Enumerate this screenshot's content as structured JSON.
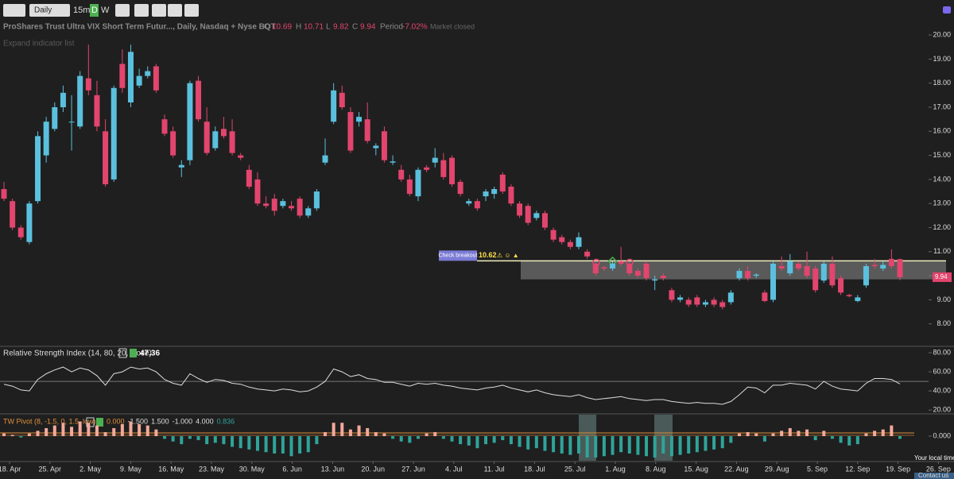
{
  "ui": {
    "interval": "Daily",
    "interval_options": [
      "15m",
      "D",
      "W"
    ],
    "expand": "Expand indicator list",
    "local_time": "Your local time",
    "contact": "Contact us",
    "market_status": "Market closed",
    "period_label": "Period",
    "period_value": "-7.02%",
    "ohlc_labels": [
      "O",
      "H",
      "L",
      "C"
    ]
  },
  "chart_data": {
    "type": "candlestick",
    "title": "ProShares Trust Ultra VIX Short Term Futur..., Daily, Nasdaq + Nyse BQT",
    "up_color": "#5bc0de",
    "down_color": "#e2456e",
    "ylim": [
      7.1,
      20.3
    ],
    "yticks": [
      {
        "value": 20,
        "label": "20.00"
      },
      {
        "value": 19,
        "label": "19.00"
      },
      {
        "value": 18,
        "label": "18.00"
      },
      {
        "value": 17,
        "label": "17.00"
      },
      {
        "value": 16,
        "label": "16.00"
      },
      {
        "value": 15,
        "label": "15.00"
      },
      {
        "value": 14,
        "label": "14.00"
      },
      {
        "value": 13,
        "label": "13.00"
      },
      {
        "value": 12,
        "label": "12.00"
      },
      {
        "value": 11,
        "label": "11.00"
      },
      {
        "value": 10,
        "label": "10.00"
      },
      {
        "value": 9,
        "label": "9.00"
      },
      {
        "value": 8,
        "label": "8.00"
      }
    ],
    "date_labels": [
      "18. Apr",
      "25. Apr",
      "2. May",
      "9. May",
      "16. May",
      "23. May",
      "30. May",
      "6. Jun",
      "13. Jun",
      "20. Jun",
      "27. Jun",
      "4. Jul",
      "11. Jul",
      "18. Jul",
      "25. Jul",
      "1. Aug",
      "8. Aug",
      "15. Aug",
      "22. Aug",
      "29. Aug",
      "5. Sep",
      "12. Sep",
      "19. Sep",
      "26. Sep"
    ],
    "breakout": {
      "label": "Check breakout",
      "level": 10.62,
      "zone_low": 9.85
    },
    "candles": [
      [
        13.6,
        13.9,
        13.1,
        13.2
      ],
      [
        13.1,
        13.2,
        11.9,
        12.0
      ],
      [
        12.0,
        12.1,
        11.5,
        11.6
      ],
      [
        11.4,
        13.1,
        11.3,
        13.0
      ],
      [
        13.1,
        16.0,
        13.0,
        15.8
      ],
      [
        15.0,
        16.6,
        14.7,
        16.4
      ],
      [
        16.1,
        17.2,
        16.0,
        17.0
      ],
      [
        17.0,
        17.9,
        16.8,
        17.6
      ],
      [
        16.4,
        17.5,
        15.2,
        16.4
      ],
      [
        16.2,
        18.5,
        16.1,
        18.3
      ],
      [
        18.2,
        19.6,
        17.5,
        17.7
      ],
      [
        17.5,
        18.1,
        16.0,
        16.2
      ],
      [
        16.0,
        16.5,
        13.7,
        13.8
      ],
      [
        14.0,
        17.9,
        13.9,
        17.8
      ],
      [
        18.8,
        19.4,
        17.6,
        17.8
      ],
      [
        17.2,
        19.6,
        17.0,
        19.3
      ],
      [
        17.9,
        18.6,
        17.8,
        18.3
      ],
      [
        18.3,
        18.7,
        18.2,
        18.5
      ],
      [
        18.7,
        18.8,
        17.6,
        17.7
      ],
      [
        16.5,
        16.7,
        15.8,
        15.9
      ],
      [
        16.0,
        16.2,
        14.9,
        15.0
      ],
      [
        14.5,
        14.8,
        14.1,
        14.6
      ],
      [
        14.8,
        18.1,
        14.6,
        18.0
      ],
      [
        18.1,
        18.3,
        16.4,
        16.5
      ],
      [
        16.4,
        17.0,
        15.0,
        15.1
      ],
      [
        15.3,
        16.2,
        15.2,
        16.0
      ],
      [
        16.1,
        16.6,
        15.7,
        15.8
      ],
      [
        16.0,
        16.5,
        15.0,
        15.1
      ],
      [
        15.0,
        15.1,
        14.8,
        14.9
      ],
      [
        14.4,
        14.6,
        13.6,
        13.7
      ],
      [
        14.0,
        14.3,
        12.9,
        13.0
      ],
      [
        13.0,
        13.3,
        12.8,
        12.9
      ],
      [
        13.2,
        13.4,
        12.5,
        12.7
      ],
      [
        12.9,
        13.2,
        12.8,
        13.1
      ],
      [
        12.9,
        13.1,
        12.7,
        12.8
      ],
      [
        13.2,
        13.3,
        12.4,
        12.5
      ],
      [
        12.5,
        12.9,
        12.4,
        12.8
      ],
      [
        12.8,
        13.6,
        12.7,
        13.5
      ],
      [
        14.7,
        15.7,
        14.6,
        15.0
      ],
      [
        16.4,
        18.0,
        16.3,
        17.7
      ],
      [
        17.6,
        17.9,
        16.9,
        17.0
      ],
      [
        16.8,
        17.0,
        15.1,
        15.2
      ],
      [
        16.4,
        16.8,
        16.2,
        16.6
      ],
      [
        16.5,
        17.2,
        15.5,
        15.6
      ],
      [
        15.3,
        15.5,
        15.0,
        15.4
      ],
      [
        16.0,
        16.2,
        14.7,
        14.8
      ],
      [
        14.7,
        15.0,
        14.6,
        14.75
      ],
      [
        14.4,
        14.6,
        13.9,
        14.0
      ],
      [
        14.0,
        14.2,
        13.3,
        13.4
      ],
      [
        13.3,
        14.5,
        13.1,
        14.4
      ],
      [
        14.5,
        14.6,
        14.3,
        14.4
      ],
      [
        14.7,
        15.3,
        14.5,
        14.9
      ],
      [
        14.8,
        15.1,
        14.0,
        14.1
      ],
      [
        14.9,
        15.0,
        13.7,
        13.8
      ],
      [
        13.9,
        14.0,
        13.3,
        13.4
      ],
      [
        13.0,
        13.2,
        12.9,
        13.1
      ],
      [
        13.1,
        13.2,
        12.7,
        12.8
      ],
      [
        13.3,
        13.6,
        13.1,
        13.5
      ],
      [
        13.4,
        13.7,
        13.2,
        13.6
      ],
      [
        14.2,
        14.3,
        13.4,
        13.5
      ],
      [
        13.7,
        13.8,
        12.9,
        13.0
      ],
      [
        13.0,
        13.1,
        12.4,
        12.5
      ],
      [
        12.9,
        13.0,
        12.1,
        12.2
      ],
      [
        12.4,
        12.7,
        12.3,
        12.6
      ],
      [
        12.6,
        12.7,
        11.9,
        12.0
      ],
      [
        11.9,
        12.0,
        11.4,
        11.5
      ],
      [
        11.6,
        11.7,
        11.3,
        11.4
      ],
      [
        11.4,
        11.5,
        11.1,
        11.2
      ],
      [
        11.2,
        11.8,
        11.1,
        11.6
      ],
      [
        11.0,
        11.1,
        10.7,
        10.8
      ],
      [
        10.5,
        10.6,
        10.0,
        10.1
      ],
      [
        10.35,
        10.4,
        10.2,
        10.3
      ],
      [
        10.3,
        10.6,
        10.2,
        10.5
      ],
      [
        10.6,
        11.2,
        10.4,
        10.5
      ],
      [
        10.5,
        10.6,
        10.0,
        10.1
      ],
      [
        10.2,
        10.3,
        9.9,
        10.0
      ],
      [
        10.5,
        10.6,
        9.8,
        9.9
      ],
      [
        9.8,
        10.0,
        9.4,
        9.85
      ],
      [
        10.0,
        10.1,
        9.8,
        9.9
      ],
      [
        9.4,
        9.5,
        8.9,
        9.0
      ],
      [
        9.0,
        9.2,
        8.9,
        9.1
      ],
      [
        9.0,
        9.1,
        8.7,
        8.8
      ],
      [
        9.1,
        9.2,
        8.7,
        8.8
      ],
      [
        8.8,
        9.0,
        8.7,
        8.9
      ],
      [
        9.0,
        9.1,
        8.7,
        8.8
      ],
      [
        8.9,
        9.0,
        8.6,
        8.7
      ],
      [
        8.9,
        9.4,
        8.8,
        9.3
      ],
      [
        9.9,
        10.3,
        9.8,
        10.2
      ],
      [
        10.2,
        10.4,
        9.8,
        9.9
      ],
      [
        10.0,
        10.1,
        9.9,
        10.05
      ],
      [
        9.3,
        9.4,
        8.9,
        8.95
      ],
      [
        9.0,
        10.6,
        8.9,
        10.5
      ],
      [
        10.4,
        10.8,
        10.2,
        10.3
      ],
      [
        10.1,
        10.9,
        10.0,
        10.6
      ],
      [
        10.5,
        10.6,
        10.2,
        10.3
      ],
      [
        10.4,
        11.0,
        9.9,
        10.0
      ],
      [
        10.3,
        10.4,
        9.3,
        9.4
      ],
      [
        9.8,
        10.6,
        9.7,
        10.5
      ],
      [
        10.5,
        10.8,
        9.5,
        9.6
      ],
      [
        9.9,
        10.0,
        9.2,
        9.3
      ],
      [
        9.2,
        9.25,
        9.1,
        9.15
      ],
      [
        8.95,
        9.2,
        8.9,
        9.1
      ],
      [
        9.6,
        10.5,
        9.5,
        10.4
      ],
      [
        10.45,
        10.7,
        10.3,
        10.4
      ],
      [
        10.3,
        10.6,
        10.2,
        10.45
      ],
      [
        10.7,
        11.1,
        10.3,
        10.4
      ],
      [
        10.69,
        10.71,
        9.82,
        9.94
      ]
    ],
    "rsi": {
      "title": "Relative Strength Index (14, 80, 20, close)",
      "color": "#dddddd",
      "ylim": [
        16,
        85
      ],
      "level": 50,
      "yticks": [
        {
          "value": 80,
          "label": "80.00"
        },
        {
          "value": 60,
          "label": "60.00"
        },
        {
          "value": 40,
          "label": "40.00"
        },
        {
          "value": 20,
          "label": "20.00"
        }
      ],
      "values": [
        47,
        45,
        41,
        40,
        52,
        58,
        62,
        65,
        60,
        64,
        62,
        56,
        46,
        58,
        60,
        65,
        63,
        64,
        60,
        52,
        48,
        46,
        58,
        53,
        49,
        52,
        51,
        48,
        47,
        44,
        42,
        41,
        40,
        42,
        41,
        39,
        40,
        44,
        50,
        63,
        60,
        55,
        57,
        53,
        52,
        49,
        49,
        47,
        45,
        48,
        47,
        48,
        46,
        45,
        43,
        42,
        41,
        43,
        44,
        46,
        43,
        41,
        39,
        41,
        38,
        36,
        35,
        34,
        36,
        33,
        31,
        32,
        33,
        34,
        32,
        31,
        30,
        31,
        31,
        29,
        28,
        27,
        28,
        27,
        27,
        26,
        29,
        36,
        44,
        43,
        38,
        46,
        46,
        48,
        47,
        46,
        42,
        50,
        45,
        42,
        41,
        40,
        48,
        53,
        53,
        52,
        47.36
      ]
    },
    "pivot": {
      "title": "TW Pivot (8, -1.5, 0, 1.5, low)",
      "params": [
        "0.000",
        "-1.500",
        "1.500",
        "-1.000",
        "4.000",
        "0.836"
      ],
      "pos_color": "#f4a99a",
      "neg_color": "#2fa49a",
      "ylim": [
        -1.9,
        1.55
      ],
      "yticks": [
        {
          "value": 0,
          "label": "0.000"
        }
      ],
      "values": [
        0.2,
        0.1,
        -0.1,
        0.2,
        0.4,
        0.6,
        0.8,
        1.0,
        0.7,
        1.1,
        1.0,
        0.8,
        0.3,
        0.6,
        0.9,
        1.1,
        0.9,
        0.8,
        0.5,
        -0.2,
        -0.4,
        -0.6,
        -0.2,
        -0.3,
        -0.6,
        -0.5,
        -0.6,
        -0.8,
        -0.9,
        -1.0,
        -1.1,
        -1.2,
        -1.3,
        -1.3,
        -1.5,
        -1.3,
        -1.2,
        -0.6,
        0.3,
        1.0,
        1.0,
        0.5,
        0.8,
        0.6,
        0.3,
        0.2,
        -0.2,
        -0.4,
        -0.5,
        -0.2,
        0.2,
        0.3,
        -0.2,
        -0.4,
        -0.6,
        -0.7,
        -0.9,
        -0.6,
        -0.5,
        -0.3,
        -0.6,
        -0.8,
        -1.0,
        -0.9,
        -1.1,
        -1.2,
        -1.3,
        -1.4,
        -1.3,
        -1.6,
        -1.6,
        -1.5,
        -1.4,
        -1.2,
        -1.3,
        -1.4,
        -1.5,
        -1.6,
        -1.3,
        -1.5,
        -1.4,
        -1.3,
        -1.2,
        -1.1,
        -1.0,
        -0.9,
        -0.5,
        0.2,
        0.3,
        0.2,
        -0.4,
        0.2,
        0.4,
        0.6,
        0.4,
        0.5,
        -0.3,
        0.4,
        -0.2,
        -0.5,
        -0.7,
        -0.6,
        0.2,
        0.4,
        0.5,
        0.8,
        -0.2
      ]
    }
  }
}
